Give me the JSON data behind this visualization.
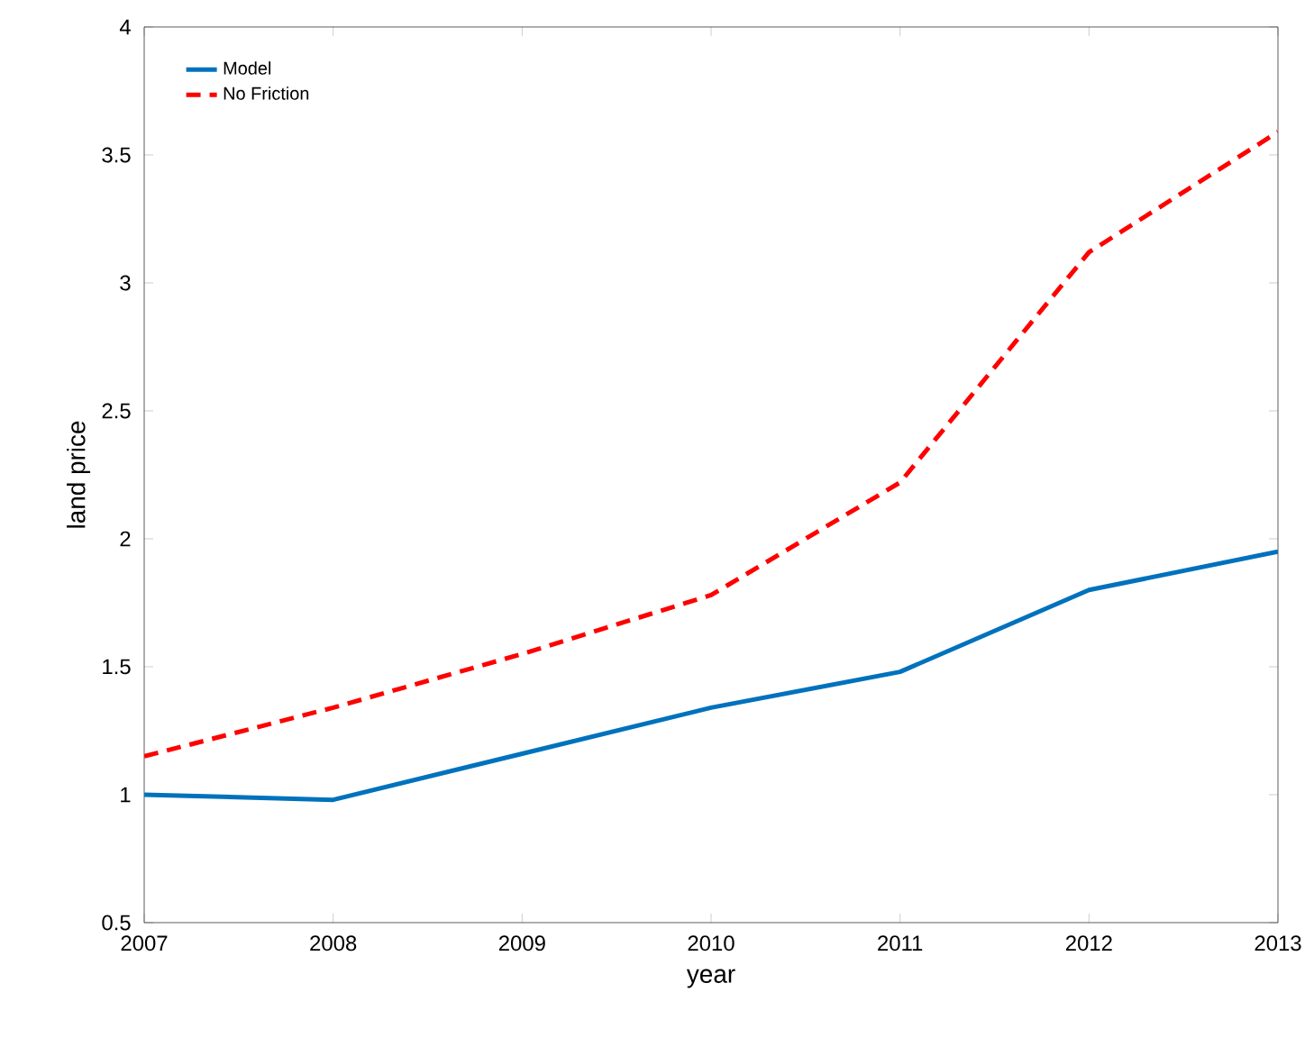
{
  "chart_data": {
    "type": "line",
    "xlabel": "year",
    "ylabel": "land price",
    "x": [
      2007,
      2008,
      2009,
      2010,
      2011,
      2012,
      2013
    ],
    "series": [
      {
        "name": "Model",
        "color": "#0072bd",
        "line_style": "solid",
        "values": [
          1.0,
          0.98,
          1.16,
          1.34,
          1.48,
          1.8,
          1.95
        ]
      },
      {
        "name": "No Friction",
        "color": "#ff0000",
        "line_style": "dashed",
        "values": [
          1.15,
          1.34,
          1.55,
          1.78,
          2.22,
          3.12,
          3.59
        ]
      }
    ],
    "xlim": [
      2007,
      2013
    ],
    "ylim": [
      0.5,
      4
    ],
    "xticks": [
      2007,
      2008,
      2009,
      2010,
      2011,
      2012,
      2013
    ],
    "yticks": [
      0.5,
      1,
      1.5,
      2,
      2.5,
      3,
      3.5,
      4
    ],
    "legend": "top left",
    "grid": false,
    "marker": "none"
  }
}
